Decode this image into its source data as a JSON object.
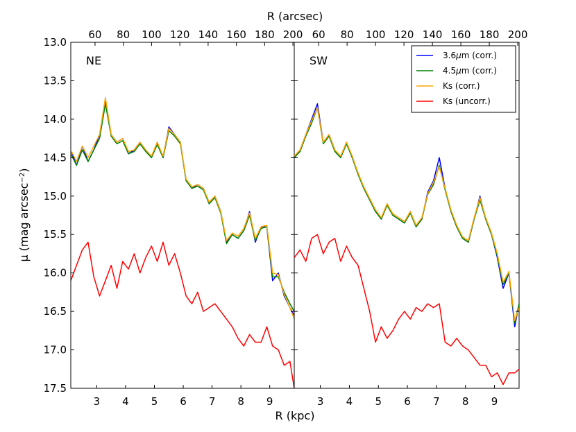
{
  "chart_data": {
    "type": "line",
    "x_label": "R (kpc)",
    "top_axis_label": "R (arcsec)",
    "y_label_prefix": "μ (mag arcsec",
    "y_label_sup": "−2",
    "y_label_suffix": ")",
    "xlim": [
      2.1,
      9.85
    ],
    "ylim": [
      17.5,
      13.0
    ],
    "x_ticks": [
      3,
      4,
      5,
      6,
      7,
      8,
      9
    ],
    "x_tick_labels": [
      "3",
      "4",
      "5",
      "6",
      "7",
      "8",
      "9"
    ],
    "top_ticks_arcsec": [
      60,
      80,
      100,
      120,
      140,
      160,
      180,
      200
    ],
    "top_tick_labels": [
      "60",
      "80",
      "100",
      "120",
      "140",
      "160",
      "180",
      "200"
    ],
    "arcsec_per_kpc": 20.4,
    "y_ticks": [
      13.0,
      13.5,
      14.0,
      14.5,
      15.0,
      15.5,
      16.0,
      16.5,
      17.0,
      17.5
    ],
    "y_tick_labels": [
      "13.0",
      "13.5",
      "14.0",
      "14.5",
      "15.0",
      "15.5",
      "16.0",
      "16.5",
      "17.0",
      "17.5"
    ],
    "legend": [
      {
        "name": "3.6μm (corr.)",
        "label_prefix": "3.6",
        "label_greek": "μ",
        "label_suffix": "m (corr.)",
        "color": "#0000ff"
      },
      {
        "name": "4.5μm (corr.)",
        "label_prefix": "4.5",
        "label_greek": "μ",
        "label_suffix": "m (corr.)",
        "color": "#008000"
      },
      {
        "name": "Ks (corr.)",
        "label_prefix": "Ks (corr.)",
        "label_greek": "",
        "label_suffix": "",
        "color": "#ffa500"
      },
      {
        "name": "Ks (uncorr.)",
        "label_prefix": "Ks (uncorr.)",
        "label_greek": "",
        "label_suffix": "",
        "color": "#ff0000"
      }
    ],
    "panels": [
      {
        "label": "NE",
        "series": [
          {
            "name": "3.6μm (corr.)",
            "color": "#0000ff",
            "x": [
              2.1,
              2.3,
              2.5,
              2.7,
              2.9,
              3.1,
              3.3,
              3.5,
              3.7,
              3.9,
              4.1,
              4.3,
              4.5,
              4.7,
              4.9,
              5.1,
              5.3,
              5.5,
              5.7,
              5.9,
              6.1,
              6.3,
              6.5,
              6.7,
              6.9,
              7.1,
              7.3,
              7.5,
              7.7,
              7.9,
              8.1,
              8.3,
              8.5,
              8.7,
              8.9,
              9.1,
              9.3,
              9.5,
              9.7,
              9.85
            ],
            "y": [
              14.4,
              14.6,
              14.35,
              14.55,
              14.4,
              14.2,
              13.75,
              14.2,
              14.3,
              14.25,
              14.45,
              14.4,
              14.3,
              14.4,
              14.5,
              14.3,
              14.5,
              14.1,
              14.2,
              14.3,
              14.8,
              14.9,
              14.85,
              14.9,
              15.1,
              15.0,
              15.2,
              15.6,
              15.5,
              15.55,
              15.45,
              15.2,
              15.6,
              15.4,
              15.4,
              16.1,
              16.0,
              16.3,
              16.45,
              16.55
            ]
          },
          {
            "name": "4.5μm (corr.)",
            "color": "#008000",
            "x": [
              2.1,
              2.3,
              2.5,
              2.7,
              2.9,
              3.1,
              3.3,
              3.5,
              3.7,
              3.9,
              4.1,
              4.3,
              4.5,
              4.7,
              4.9,
              5.1,
              5.3,
              5.5,
              5.7,
              5.9,
              6.1,
              6.3,
              6.5,
              6.7,
              6.9,
              7.1,
              7.3,
              7.5,
              7.7,
              7.9,
              8.1,
              8.3,
              8.5,
              8.7,
              8.9,
              9.1,
              9.3,
              9.5,
              9.7,
              9.85
            ],
            "y": [
              14.45,
              14.6,
              14.4,
              14.55,
              14.4,
              14.25,
              13.8,
              14.22,
              14.32,
              14.28,
              14.45,
              14.42,
              14.32,
              14.42,
              14.5,
              14.33,
              14.5,
              14.15,
              14.22,
              14.32,
              14.8,
              14.9,
              14.87,
              14.92,
              15.1,
              15.02,
              15.22,
              15.62,
              15.5,
              15.55,
              15.45,
              15.25,
              15.58,
              15.42,
              15.4,
              16.05,
              16.05,
              16.25,
              16.4,
              16.5
            ]
          },
          {
            "name": "Ks (corr.)",
            "color": "#ffa500",
            "x": [
              2.1,
              2.3,
              2.5,
              2.7,
              2.9,
              3.1,
              3.3,
              3.5,
              3.7,
              3.9,
              4.1,
              4.3,
              4.5,
              4.7,
              4.9,
              5.1,
              5.3,
              5.5,
              5.7,
              5.9,
              6.1,
              6.3,
              6.5,
              6.7,
              6.9,
              7.1,
              7.3,
              7.5,
              7.7,
              7.9,
              8.1,
              8.3,
              8.5,
              8.7,
              8.9,
              9.1,
              9.3,
              9.5,
              9.7,
              9.85
            ],
            "y": [
              14.4,
              14.55,
              14.35,
              14.5,
              14.35,
              14.2,
              13.72,
              14.2,
              14.3,
              14.25,
              14.42,
              14.4,
              14.3,
              14.4,
              14.48,
              14.3,
              14.48,
              14.12,
              14.2,
              14.3,
              14.78,
              14.88,
              14.85,
              14.9,
              15.08,
              15.0,
              15.2,
              15.58,
              15.48,
              15.52,
              15.42,
              15.22,
              15.55,
              15.4,
              15.38,
              16.0,
              16.02,
              16.28,
              16.45,
              16.6
            ]
          },
          {
            "name": "Ks (uncorr.)",
            "color": "#ff0000",
            "x": [
              2.1,
              2.3,
              2.5,
              2.7,
              2.9,
              3.1,
              3.3,
              3.5,
              3.7,
              3.9,
              4.1,
              4.3,
              4.5,
              4.7,
              4.9,
              5.1,
              5.3,
              5.5,
              5.7,
              5.9,
              6.1,
              6.3,
              6.5,
              6.7,
              6.9,
              7.1,
              7.3,
              7.5,
              7.7,
              7.9,
              8.1,
              8.3,
              8.5,
              8.7,
              8.9,
              9.1,
              9.3,
              9.5,
              9.7,
              9.85
            ],
            "y": [
              16.1,
              15.9,
              15.7,
              15.6,
              16.05,
              16.3,
              16.1,
              15.9,
              16.2,
              15.85,
              15.95,
              15.75,
              16.0,
              15.8,
              15.65,
              15.85,
              15.6,
              15.9,
              15.75,
              16.0,
              16.3,
              16.4,
              16.25,
              16.5,
              16.45,
              16.4,
              16.5,
              16.6,
              16.7,
              16.85,
              16.95,
              16.8,
              16.9,
              16.9,
              16.7,
              16.95,
              17.0,
              17.2,
              17.15,
              17.5
            ]
          }
        ]
      },
      {
        "label": "SW",
        "series": [
          {
            "name": "3.6μm (corr.)",
            "color": "#0000ff",
            "x": [
              2.1,
              2.3,
              2.5,
              2.7,
              2.9,
              3.1,
              3.3,
              3.5,
              3.7,
              3.9,
              4.1,
              4.3,
              4.5,
              4.7,
              4.9,
              5.1,
              5.3,
              5.5,
              5.7,
              5.9,
              6.1,
              6.3,
              6.5,
              6.7,
              6.9,
              7.1,
              7.3,
              7.5,
              7.7,
              7.9,
              8.1,
              8.3,
              8.5,
              8.7,
              8.9,
              9.1,
              9.3,
              9.5,
              9.7,
              9.85
            ],
            "y": [
              14.5,
              14.4,
              14.2,
              14.0,
              13.8,
              14.3,
              14.2,
              14.4,
              14.5,
              14.3,
              14.5,
              14.7,
              14.9,
              15.05,
              15.2,
              15.3,
              15.1,
              15.25,
              15.3,
              15.35,
              15.2,
              15.4,
              15.3,
              14.95,
              14.8,
              14.5,
              14.9,
              15.2,
              15.4,
              15.55,
              15.6,
              15.3,
              15.0,
              15.3,
              15.5,
              15.8,
              16.2,
              16.0,
              16.7,
              16.4
            ]
          },
          {
            "name": "4.5μm (corr.)",
            "color": "#008000",
            "x": [
              2.1,
              2.3,
              2.5,
              2.7,
              2.9,
              3.1,
              3.3,
              3.5,
              3.7,
              3.9,
              4.1,
              4.3,
              4.5,
              4.7,
              4.9,
              5.1,
              5.3,
              5.5,
              5.7,
              5.9,
              6.1,
              6.3,
              6.5,
              6.7,
              6.9,
              7.1,
              7.3,
              7.5,
              7.7,
              7.9,
              8.1,
              8.3,
              8.5,
              8.7,
              8.9,
              9.1,
              9.3,
              9.5,
              9.7,
              9.85
            ],
            "y": [
              14.5,
              14.42,
              14.22,
              14.05,
              13.85,
              14.32,
              14.22,
              14.42,
              14.5,
              14.32,
              14.5,
              14.72,
              14.9,
              15.05,
              15.2,
              15.3,
              15.12,
              15.25,
              15.3,
              15.35,
              15.22,
              15.4,
              15.3,
              14.98,
              14.85,
              14.6,
              14.92,
              15.2,
              15.4,
              15.55,
              15.6,
              15.3,
              15.05,
              15.3,
              15.5,
              15.78,
              16.15,
              16.0,
              16.65,
              16.4
            ]
          },
          {
            "name": "Ks (corr.)",
            "color": "#ffa500",
            "x": [
              2.1,
              2.3,
              2.5,
              2.7,
              2.9,
              3.1,
              3.3,
              3.5,
              3.7,
              3.9,
              4.1,
              4.3,
              4.5,
              4.7,
              4.9,
              5.1,
              5.3,
              5.5,
              5.7,
              5.9,
              6.1,
              6.3,
              6.5,
              6.7,
              6.9,
              7.1,
              7.3,
              7.5,
              7.7,
              7.9,
              8.1,
              8.3,
              8.5,
              8.7,
              8.9,
              9.1,
              9.3,
              9.5,
              9.7,
              9.85
            ],
            "y": [
              14.48,
              14.4,
              14.2,
              14.02,
              13.85,
              14.3,
              14.2,
              14.4,
              14.48,
              14.3,
              14.48,
              14.7,
              14.88,
              15.03,
              15.18,
              15.28,
              15.1,
              15.23,
              15.28,
              15.33,
              15.2,
              15.38,
              15.28,
              14.97,
              14.82,
              14.62,
              14.9,
              15.18,
              15.38,
              15.53,
              15.58,
              15.28,
              15.02,
              15.28,
              15.48,
              15.75,
              16.12,
              15.98,
              16.62,
              16.45
            ]
          },
          {
            "name": "Ks (uncorr.)",
            "color": "#ff0000",
            "x": [
              2.1,
              2.3,
              2.5,
              2.7,
              2.9,
              3.1,
              3.3,
              3.5,
              3.7,
              3.9,
              4.1,
              4.3,
              4.5,
              4.7,
              4.9,
              5.1,
              5.3,
              5.5,
              5.7,
              5.9,
              6.1,
              6.3,
              6.5,
              6.7,
              6.9,
              7.1,
              7.3,
              7.5,
              7.7,
              7.9,
              8.1,
              8.3,
              8.5,
              8.7,
              8.9,
              9.1,
              9.3,
              9.5,
              9.7,
              9.85
            ],
            "y": [
              15.8,
              15.7,
              15.85,
              15.55,
              15.5,
              15.75,
              15.6,
              15.55,
              15.85,
              15.65,
              15.8,
              15.9,
              16.2,
              16.5,
              16.9,
              16.7,
              16.85,
              16.75,
              16.6,
              16.5,
              16.6,
              16.45,
              16.5,
              16.4,
              16.45,
              16.4,
              16.9,
              16.95,
              16.85,
              16.95,
              17.0,
              17.1,
              17.2,
              17.2,
              17.35,
              17.3,
              17.45,
              17.3,
              17.3,
              17.25
            ]
          }
        ]
      }
    ]
  }
}
